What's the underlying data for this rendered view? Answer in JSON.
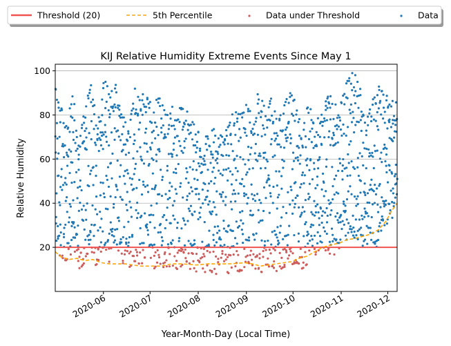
{
  "chart_data": {
    "type": "scatter",
    "title": "KIJ Relative Humidity Extreme Events Since May 1",
    "xlabel": "Year-Month-Day (Local Time)",
    "ylabel": "Relative Humidity",
    "x_range": [
      "2020-05-01",
      "2020-12-07"
    ],
    "ylim": [
      0,
      103
    ],
    "x_ticks": [
      "2020-06",
      "2020-07",
      "2020-08",
      "2020-09",
      "2020-10",
      "2020-11",
      "2020-12"
    ],
    "y_ticks": [
      20,
      40,
      60,
      80,
      100
    ],
    "grid": "horizontal",
    "legend": {
      "placement": "above plot",
      "entries": [
        {
          "label": "Threshold (20)",
          "style": "line",
          "color": "#ef5350"
        },
        {
          "label": "5th Percentile",
          "style": "dashed-line",
          "color": "#ffa500"
        },
        {
          "label": "Data under Threshold",
          "style": "marker",
          "color": "#cd5c5c"
        },
        {
          "label": "Data",
          "style": "marker",
          "color": "#1f77b4"
        }
      ]
    },
    "series": [
      {
        "name": "Threshold (20)",
        "kind": "hline",
        "color": "#ef5350",
        "value": 20
      },
      {
        "name": "5th Percentile",
        "kind": "line",
        "color": "#ffa500",
        "points": [
          [
            "2020-05-01",
            18
          ],
          [
            "2020-05-05",
            15.5
          ],
          [
            "2020-05-10",
            14.5
          ],
          [
            "2020-05-15",
            15
          ],
          [
            "2020-05-20",
            14
          ],
          [
            "2020-05-25",
            14.5
          ],
          [
            "2020-05-31",
            13
          ],
          [
            "2020-06-05",
            12.5
          ],
          [
            "2020-06-10",
            12.5
          ],
          [
            "2020-06-15",
            12.5
          ],
          [
            "2020-06-20",
            12
          ],
          [
            "2020-06-25",
            11.5
          ],
          [
            "2020-07-01",
            11.5
          ],
          [
            "2020-07-08",
            11.5
          ],
          [
            "2020-07-15",
            12.5
          ],
          [
            "2020-07-22",
            12.5
          ],
          [
            "2020-07-31",
            12
          ],
          [
            "2020-08-07",
            12.5
          ],
          [
            "2020-08-14",
            12.5
          ],
          [
            "2020-08-21",
            12.5
          ],
          [
            "2020-08-31",
            13
          ],
          [
            "2020-09-05",
            12.5
          ],
          [
            "2020-09-10",
            11.5
          ],
          [
            "2020-09-15",
            12
          ],
          [
            "2020-09-20",
            12.5
          ],
          [
            "2020-09-25",
            13
          ],
          [
            "2020-09-30",
            13.5
          ],
          [
            "2020-10-05",
            15
          ],
          [
            "2020-10-10",
            16
          ],
          [
            "2020-10-15",
            18
          ],
          [
            "2020-10-20",
            20
          ],
          [
            "2020-10-25",
            21
          ],
          [
            "2020-10-31",
            22
          ],
          [
            "2020-11-05",
            23.5
          ],
          [
            "2020-11-10",
            24
          ],
          [
            "2020-11-15",
            25
          ],
          [
            "2020-11-20",
            26
          ],
          [
            "2020-11-25",
            28
          ],
          [
            "2020-11-30",
            32
          ],
          [
            "2020-12-03",
            36
          ],
          [
            "2020-12-07",
            40
          ]
        ]
      },
      {
        "name": "Data",
        "kind": "scatter",
        "color": "#1f77b4",
        "description_low_high": "relative humidity cycles daily between roughly 10-20 (daily minimum) and 70-97 (daily maximum)",
        "envelope": [
          [
            "2020-05-01",
            22,
            90
          ],
          [
            "2020-05-04",
            18,
            85
          ],
          [
            "2020-05-08",
            16,
            72
          ],
          [
            "2020-05-12",
            20,
            88
          ],
          [
            "2020-05-16",
            12,
            70
          ],
          [
            "2020-05-20",
            15,
            80
          ],
          [
            "2020-05-24",
            18,
            92
          ],
          [
            "2020-05-28",
            12,
            75
          ],
          [
            "2020-06-01",
            20,
            95
          ],
          [
            "2020-06-05",
            15,
            88
          ],
          [
            "2020-06-09",
            25,
            92
          ],
          [
            "2020-06-13",
            14,
            80
          ],
          [
            "2020-06-17",
            12,
            70
          ],
          [
            "2020-06-21",
            16,
            90
          ],
          [
            "2020-06-25",
            14,
            88
          ],
          [
            "2020-06-29",
            18,
            86
          ],
          [
            "2020-07-03",
            12,
            82
          ],
          [
            "2020-07-07",
            15,
            88
          ],
          [
            "2020-07-11",
            12,
            78
          ],
          [
            "2020-07-15",
            14,
            82
          ],
          [
            "2020-07-19",
            12,
            80
          ],
          [
            "2020-07-23",
            15,
            84
          ],
          [
            "2020-07-27",
            12,
            76
          ],
          [
            "2020-07-31",
            11,
            72
          ],
          [
            "2020-08-04",
            10,
            66
          ],
          [
            "2020-08-08",
            12,
            70
          ],
          [
            "2020-08-12",
            9,
            72
          ],
          [
            "2020-08-16",
            12,
            68
          ],
          [
            "2020-08-20",
            10,
            72
          ],
          [
            "2020-08-24",
            12,
            80
          ],
          [
            "2020-08-28",
            11,
            78
          ],
          [
            "2020-09-01",
            14,
            84
          ],
          [
            "2020-09-05",
            12,
            76
          ],
          [
            "2020-09-09",
            10,
            90
          ],
          [
            "2020-09-13",
            12,
            80
          ],
          [
            "2020-09-17",
            14,
            86
          ],
          [
            "2020-09-21",
            11,
            74
          ],
          [
            "2020-09-25",
            13,
            82
          ],
          [
            "2020-09-29",
            14,
            88
          ],
          [
            "2020-10-03",
            15,
            84
          ],
          [
            "2020-10-07",
            10,
            70
          ],
          [
            "2020-10-11",
            16,
            84
          ],
          [
            "2020-10-15",
            18,
            72
          ],
          [
            "2020-10-19",
            22,
            80
          ],
          [
            "2020-10-23",
            20,
            90
          ],
          [
            "2020-10-27",
            18,
            84
          ],
          [
            "2020-10-31",
            22,
            80
          ],
          [
            "2020-11-04",
            25,
            92
          ],
          [
            "2020-11-08",
            28,
            97
          ],
          [
            "2020-11-12",
            24,
            96
          ],
          [
            "2020-11-16",
            20,
            74
          ],
          [
            "2020-11-20",
            26,
            82
          ],
          [
            "2020-11-24",
            22,
            92
          ],
          [
            "2020-11-28",
            30,
            88
          ],
          [
            "2020-12-02",
            34,
            86
          ],
          [
            "2020-12-07",
            38,
            84
          ]
        ]
      },
      {
        "name": "Data under Threshold",
        "kind": "scatter",
        "color": "#cd5c5c",
        "threshold": 20,
        "note": "points of Data with relative humidity below 20"
      }
    ]
  }
}
